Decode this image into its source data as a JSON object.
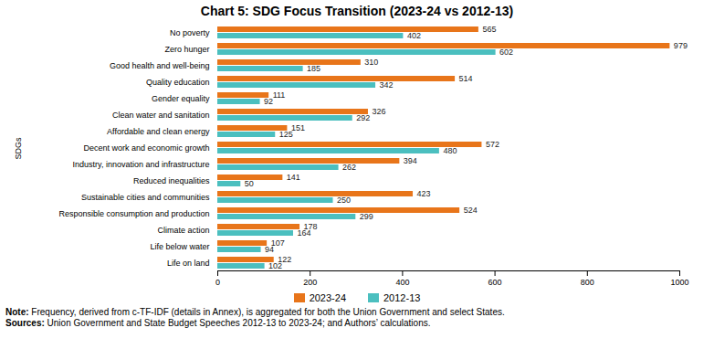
{
  "chart_data": {
    "type": "bar",
    "orientation": "horizontal",
    "title": "Chart 5: SDG Focus Transition (2023-24 vs 2012-13)",
    "categories": [
      "No poverty",
      "Zero hunger",
      "Good health and well-being",
      "Quality education",
      "Gender equality",
      "Clean water and sanitation",
      "Affordable and clean energy",
      "Decent work and economic growth",
      "Industry, innovation and infrastructure",
      "Reduced inequalities",
      "Sustainable cities and communities",
      "Responsible consumption and production",
      "Climate action",
      "Life below water",
      "Life on land"
    ],
    "series": [
      {
        "name": "2023-24",
        "color": "#E8751A",
        "values": [
          565,
          979,
          310,
          514,
          111,
          326,
          151,
          572,
          394,
          141,
          423,
          524,
          178,
          107,
          122
        ]
      },
      {
        "name": "2012-13",
        "color": "#4BBFBF",
        "values": [
          402,
          602,
          185,
          342,
          92,
          292,
          125,
          480,
          262,
          50,
          250,
          299,
          164,
          94,
          102
        ]
      }
    ],
    "ylabel": "SDGs",
    "xlim": [
      0,
      1000
    ],
    "xticks": [
      0,
      200,
      400,
      600,
      800,
      1000
    ],
    "data_labels": true,
    "grid": false,
    "legend": "bottom",
    "annotations": [
      "Note: Frequency, derived from c-TF-IDF (details in Annex), is aggregated for both the Union Government and select States.",
      "Sources: Union Government and State Budget Speeches 2012-13 to 2023-24; and Authors’ calculations."
    ]
  }
}
